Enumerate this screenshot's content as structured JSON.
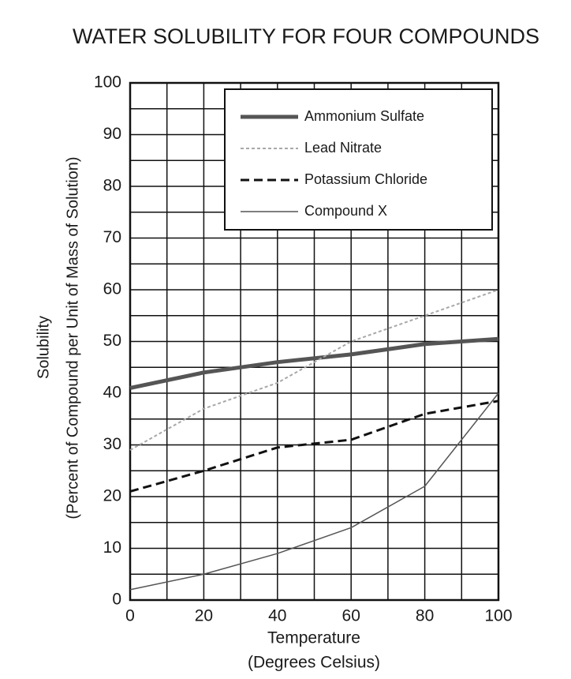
{
  "chart_data": {
    "type": "line",
    "title": "WATER SOLUBILITY FOR FOUR COMPOUNDS",
    "xlabel": [
      "Temperature",
      "(Degrees Celsius)"
    ],
    "ylabel": [
      "Solubility",
      "(Percent of Compound per Unit of Mass of Solution)"
    ],
    "x": [
      0,
      20,
      40,
      60,
      80,
      100
    ],
    "series": [
      {
        "name": "Ammonium Sulfate",
        "color": "#555555",
        "linestyle": "solid",
        "linewidth": 5,
        "values": [
          41,
          44,
          46,
          47.5,
          49.5,
          50.5
        ]
      },
      {
        "name": "Lead Nitrate",
        "color": "#a8a8a8",
        "linestyle": "dotted",
        "linewidth": 2,
        "values": [
          29,
          37,
          42,
          50,
          55,
          60
        ]
      },
      {
        "name": "Potassium Chloride",
        "color": "#111111",
        "linestyle": "dashed",
        "linewidth": 3,
        "values": [
          21,
          25,
          29.5,
          31,
          36,
          38.5
        ]
      },
      {
        "name": "Compound X",
        "color": "#555555",
        "linestyle": "solid",
        "linewidth": 1.5,
        "values": [
          2,
          5,
          9,
          14,
          22,
          40
        ]
      }
    ],
    "xlim": [
      0,
      100
    ],
    "ylim": [
      0,
      100
    ],
    "xticks": [
      0,
      20,
      40,
      60,
      80,
      100
    ],
    "yticks": [
      0,
      10,
      20,
      30,
      40,
      50,
      60,
      70,
      80,
      90,
      100
    ],
    "xminor": [
      10,
      30,
      50,
      70,
      90
    ],
    "yminor": [
      5,
      15,
      25,
      35,
      45,
      55,
      65,
      75,
      85,
      95
    ],
    "grid": true,
    "legend": "upper right"
  }
}
